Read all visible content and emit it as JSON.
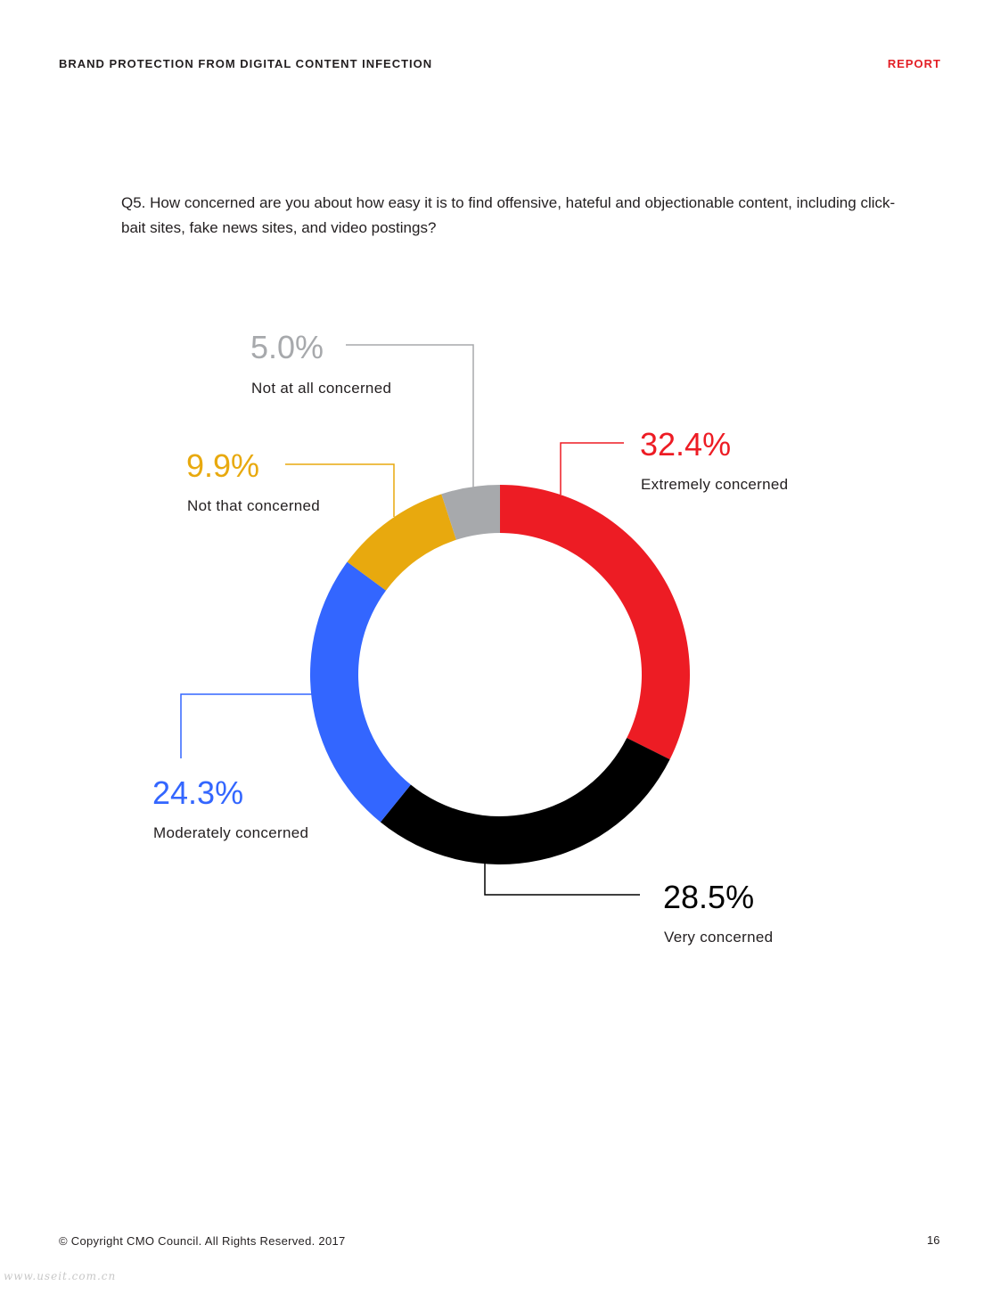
{
  "header": {
    "title": "BRAND PROTECTION FROM DIGITAL CONTENT INFECTION",
    "section": "REPORT"
  },
  "question": "Q5. How concerned are you about how easy it is to find offensive, hateful and objectionable content, including click-bait sites, fake news sites, and video postings?",
  "chart_data": {
    "type": "pie",
    "variant": "donut",
    "title": "",
    "start_angle_deg": 0,
    "direction": "clockwise",
    "legend": "none",
    "slices": [
      {
        "label": "Extremely concerned",
        "value": 32.4,
        "value_label": "32.4%",
        "color": "#ed1c24"
      },
      {
        "label": "Very concerned",
        "value": 28.5,
        "value_label": "28.5%",
        "color": "#000000"
      },
      {
        "label": "Moderately concerned",
        "value": 24.3,
        "value_label": "24.3%",
        "color": "#3366ff"
      },
      {
        "label": "Not that concerned",
        "value": 9.9,
        "value_label": "9.9%",
        "color": "#e8a90e"
      },
      {
        "label": "Not at all concerned",
        "value": 5.0,
        "value_label": "5.0%",
        "color": "#a7a9ac"
      }
    ]
  },
  "footer": {
    "copyright": "© Copyright CMO Council. All Rights Reserved. 2017",
    "page_number": "16"
  },
  "watermark": "www.useit.com.cn"
}
